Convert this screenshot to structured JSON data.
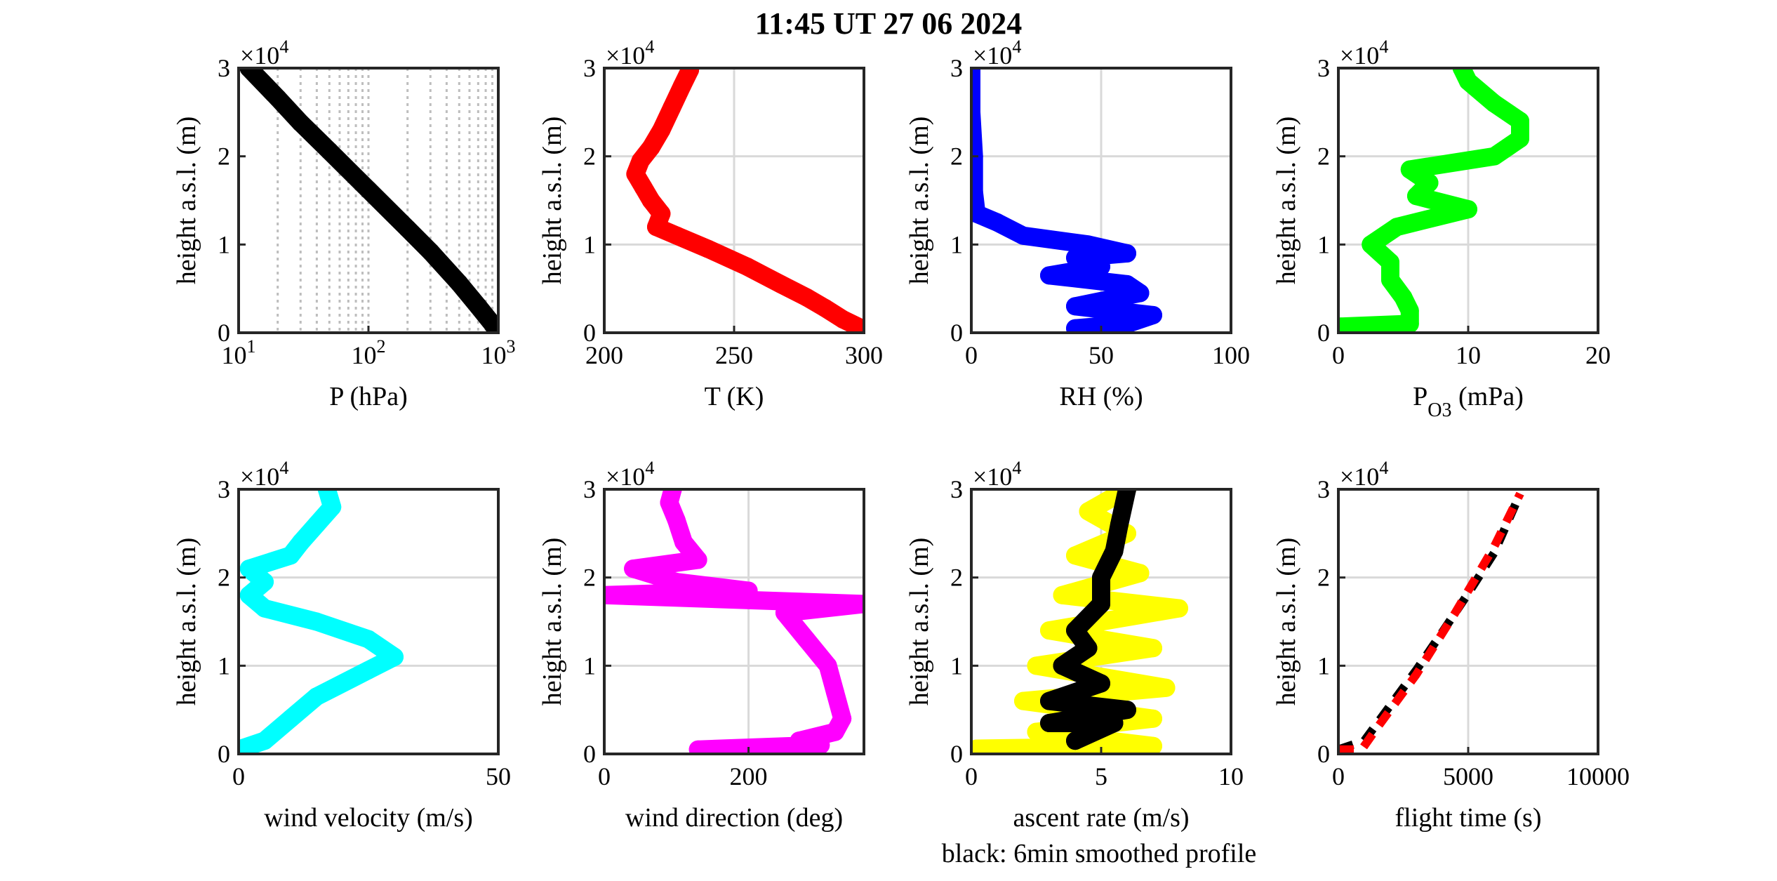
{
  "title": "11:45 UT  27 06 2024",
  "note": "black: 6min smoothed profile",
  "colors": {
    "black": "#000000",
    "red": "#ff0000",
    "blue": "#0000ff",
    "green": "#00ff00",
    "cyan": "#00ffff",
    "magenta": "#ff00ff",
    "yellow": "#ffff00",
    "grid": "#d9d9d9"
  },
  "chart_data": [
    {
      "type": "line",
      "xlabel": "P (hPa)",
      "ylabel": "height a.s.l. (m)",
      "y_multiplier": "×10^4",
      "xscale": "log",
      "xlim": [
        10,
        1000
      ],
      "xticks": [
        10,
        100,
        1000
      ],
      "xtick_labels": [
        "10^1",
        "10^2",
        "10^3"
      ],
      "ylim": [
        0,
        30000
      ],
      "yticks": [
        0,
        10000,
        20000,
        30000
      ],
      "ytick_labels": [
        "0",
        "1",
        "2",
        "3"
      ],
      "grid": "dotted minor log grid",
      "series": [
        {
          "color": "#000000",
          "points": [
            [
              1000,
              0
            ],
            [
              900,
              1000
            ],
            [
              700,
              3000
            ],
            [
              500,
              5600
            ],
            [
              300,
              9200
            ],
            [
              200,
              11800
            ],
            [
              100,
              16200
            ],
            [
              50,
              20600
            ],
            [
              30,
              23800
            ],
            [
              20,
              26600
            ],
            [
              12,
              30000
            ]
          ]
        }
      ]
    },
    {
      "type": "scatter",
      "xlabel": "T (K)",
      "ylabel": "height a.s.l. (m)",
      "y_multiplier": "×10^4",
      "xlim": [
        200,
        300
      ],
      "xticks": [
        200,
        250,
        300
      ],
      "xtick_labels": [
        "200",
        "250",
        "300"
      ],
      "ylim": [
        0,
        30000
      ],
      "yticks": [
        0,
        10000,
        20000,
        30000
      ],
      "ytick_labels": [
        "0",
        "1",
        "2",
        "3"
      ],
      "grid": "on",
      "series": [
        {
          "color": "#ff0000",
          "points": [
            [
              299,
              500
            ],
            [
              292,
              1500
            ],
            [
              285,
              2800
            ],
            [
              278,
              4000
            ],
            [
              268,
              5500
            ],
            [
              255,
              7500
            ],
            [
              240,
              9500
            ],
            [
              228,
              11000
            ],
            [
              220,
              12000
            ],
            [
              222,
              13500
            ],
            [
              218,
              15000
            ],
            [
              215,
              16500
            ],
            [
              212,
              18000
            ],
            [
              214,
              19500
            ],
            [
              218,
              21000
            ],
            [
              222,
              23000
            ],
            [
              226,
              25500
            ],
            [
              230,
              28000
            ],
            [
              233,
              29800
            ]
          ]
        }
      ]
    },
    {
      "type": "scatter",
      "xlabel": "RH (%)",
      "ylabel": "height a.s.l. (m)",
      "y_multiplier": "×10^4",
      "xlim": [
        0,
        100
      ],
      "xticks": [
        0,
        50,
        100
      ],
      "xtick_labels": [
        "0",
        "50",
        "100"
      ],
      "ylim": [
        0,
        30000
      ],
      "yticks": [
        0,
        10000,
        20000,
        30000
      ],
      "ytick_labels": [
        "0",
        "1",
        "2",
        "3"
      ],
      "grid": "on",
      "series": [
        {
          "color": "#0000ff",
          "points": [
            [
              40,
              500
            ],
            [
              60,
              1000
            ],
            [
              70,
              2000
            ],
            [
              40,
              3000
            ],
            [
              65,
              4500
            ],
            [
              60,
              5500
            ],
            [
              30,
              6500
            ],
            [
              50,
              7500
            ],
            [
              40,
              8500
            ],
            [
              60,
              9000
            ],
            [
              45,
              10000
            ],
            [
              20,
              11000
            ],
            [
              10,
              12500
            ],
            [
              2,
              13500
            ],
            [
              1,
              16000
            ],
            [
              1,
              20000
            ],
            [
              0,
              25000
            ],
            [
              0,
              30000
            ]
          ]
        }
      ]
    },
    {
      "type": "scatter",
      "xlabel": "P_O3 (mPa)",
      "ylabel": "height a.s.l. (m)",
      "y_multiplier": "×10^4",
      "xlim": [
        0,
        20
      ],
      "xticks": [
        0,
        10,
        20
      ],
      "xtick_labels": [
        "0",
        "10",
        "20"
      ],
      "ylim": [
        0,
        30000
      ],
      "yticks": [
        0,
        10000,
        20000,
        30000
      ],
      "ytick_labels": [
        "0",
        "1",
        "2",
        "3"
      ],
      "grid": "on",
      "series": [
        {
          "color": "#00ff00",
          "points": [
            [
              0.2,
              700
            ],
            [
              5.5,
              1000
            ],
            [
              5.5,
              2500
            ],
            [
              5,
              4000
            ],
            [
              4,
              6000
            ],
            [
              4,
              8000
            ],
            [
              2.5,
              10000
            ],
            [
              4.5,
              12000
            ],
            [
              10,
              14000
            ],
            [
              6,
              15500
            ],
            [
              7,
              17000
            ],
            [
              5.5,
              18500
            ],
            [
              12,
              20000
            ],
            [
              14,
              22000
            ],
            [
              14,
              24000
            ],
            [
              12,
              26000
            ],
            [
              10,
              28500
            ],
            [
              9.5,
              30000
            ]
          ]
        }
      ]
    },
    {
      "type": "scatter",
      "xlabel": "wind velocity (m/s)",
      "ylabel": "height a.s.l. (m)",
      "y_multiplier": "×10^4",
      "xlim": [
        0,
        50
      ],
      "xticks": [
        0,
        50
      ],
      "xtick_labels": [
        "0",
        "50"
      ],
      "ylim": [
        0,
        30000
      ],
      "yticks": [
        0,
        10000,
        20000,
        30000
      ],
      "ytick_labels": [
        "0",
        "1",
        "2",
        "3"
      ],
      "grid": "on",
      "series": [
        {
          "color": "#00ffff",
          "points": [
            [
              0,
              500
            ],
            [
              5,
              1500
            ],
            [
              10,
              4000
            ],
            [
              15,
              6500
            ],
            [
              25,
              9500
            ],
            [
              30,
              11000
            ],
            [
              25,
              13000
            ],
            [
              15,
              15000
            ],
            [
              5,
              16500
            ],
            [
              2,
              18000
            ],
            [
              5,
              19500
            ],
            [
              2,
              21000
            ],
            [
              10,
              22500
            ],
            [
              12,
              24000
            ],
            [
              15,
              26000
            ],
            [
              18,
              28000
            ],
            [
              17,
              30000
            ]
          ]
        }
      ]
    },
    {
      "type": "scatter",
      "xlabel": "wind direction (deg)",
      "ylabel": "height a.s.l. (m)",
      "y_multiplier": "×10^4",
      "xlim": [
        0,
        360
      ],
      "xticks": [
        0,
        200
      ],
      "xtick_labels": [
        "0",
        "200"
      ],
      "ylim": [
        0,
        30000
      ],
      "yticks": [
        0,
        10000,
        20000,
        30000
      ],
      "ytick_labels": [
        "0",
        "1",
        "2",
        "3"
      ],
      "grid": "on",
      "series": [
        {
          "color": "#ff00ff",
          "points": [
            [
              130,
              500
            ],
            [
              300,
              1000
            ],
            [
              270,
              1500
            ],
            [
              320,
              2500
            ],
            [
              330,
              4000
            ],
            [
              320,
              7000
            ],
            [
              310,
              10000
            ],
            [
              280,
              13000
            ],
            [
              250,
              16000
            ],
            [
              360,
              17000
            ],
            [
              0,
              18000
            ],
            [
              200,
              18500
            ],
            [
              100,
              19500
            ],
            [
              40,
              21000
            ],
            [
              130,
              22000
            ],
            [
              110,
              24000
            ],
            [
              100,
              26500
            ],
            [
              90,
              28500
            ],
            [
              95,
              30000
            ]
          ]
        }
      ]
    },
    {
      "type": "scatter",
      "xlabel": "ascent rate (m/s)",
      "ylabel": "height a.s.l. (m)",
      "y_multiplier": "×10^4",
      "xlim": [
        0,
        10
      ],
      "xticks": [
        0,
        5,
        10
      ],
      "xtick_labels": [
        "0",
        "5",
        "10"
      ],
      "ylim": [
        0,
        30000
      ],
      "yticks": [
        0,
        10000,
        20000,
        30000
      ],
      "ytick_labels": [
        "0",
        "1",
        "2",
        "3"
      ],
      "grid": "on",
      "series": [
        {
          "color": "#ffff00",
          "points": [
            [
              0.2,
              600
            ],
            [
              7,
              900
            ],
            [
              2.5,
              2500
            ],
            [
              7,
              4000
            ],
            [
              2,
              6000
            ],
            [
              7.5,
              7500
            ],
            [
              2.5,
              10000
            ],
            [
              7,
              12000
            ],
            [
              3,
              14000
            ],
            [
              8,
              16500
            ],
            [
              3.5,
              18000
            ],
            [
              6.5,
              20500
            ],
            [
              4,
              22500
            ],
            [
              6,
              25000
            ],
            [
              4.5,
              27500
            ],
            [
              6,
              30000
            ]
          ]
        },
        {
          "color": "#000000",
          "points": [
            [
              4,
              1500
            ],
            [
              5.5,
              3500
            ],
            [
              3,
              3500
            ],
            [
              6,
              5000
            ],
            [
              3,
              6000
            ],
            [
              5,
              8000
            ],
            [
              3.5,
              10000
            ],
            [
              4.5,
              12000
            ],
            [
              4,
              14000
            ],
            [
              5,
              17000
            ],
            [
              5,
              20000
            ],
            [
              5.5,
              23000
            ],
            [
              5.7,
              26000
            ],
            [
              6,
              30000
            ]
          ]
        }
      ]
    },
    {
      "type": "line",
      "xlabel": "flight time (s)",
      "ylabel": "height a.s.l. (m)",
      "y_multiplier": "×10^4",
      "xlim": [
        0,
        10000
      ],
      "xticks": [
        0,
        5000,
        10000
      ],
      "xtick_labels": [
        "0",
        "5000",
        "10000"
      ],
      "ylim": [
        0,
        30000
      ],
      "yticks": [
        0,
        10000,
        20000,
        30000
      ],
      "ytick_labels": [
        "0",
        "1",
        "2",
        "3"
      ],
      "grid": "on",
      "series": [
        {
          "color": "#000000",
          "dashed": true,
          "points": [
            [
              0,
              500
            ],
            [
              1000,
              1500
            ],
            [
              2000,
              5500
            ],
            [
              3000,
              9500
            ],
            [
              4000,
              13800
            ],
            [
              5000,
              18200
            ],
            [
              6000,
              22800
            ],
            [
              7000,
              29500
            ]
          ]
        },
        {
          "color": "#ff0000",
          "dashed": true,
          "points": [
            [
              0,
              500
            ],
            [
              900,
              500
            ],
            [
              1500,
              3000
            ],
            [
              3000,
              9000
            ],
            [
              4500,
              16000
            ],
            [
              6000,
              23500
            ],
            [
              7000,
              29500
            ]
          ]
        }
      ]
    }
  ]
}
